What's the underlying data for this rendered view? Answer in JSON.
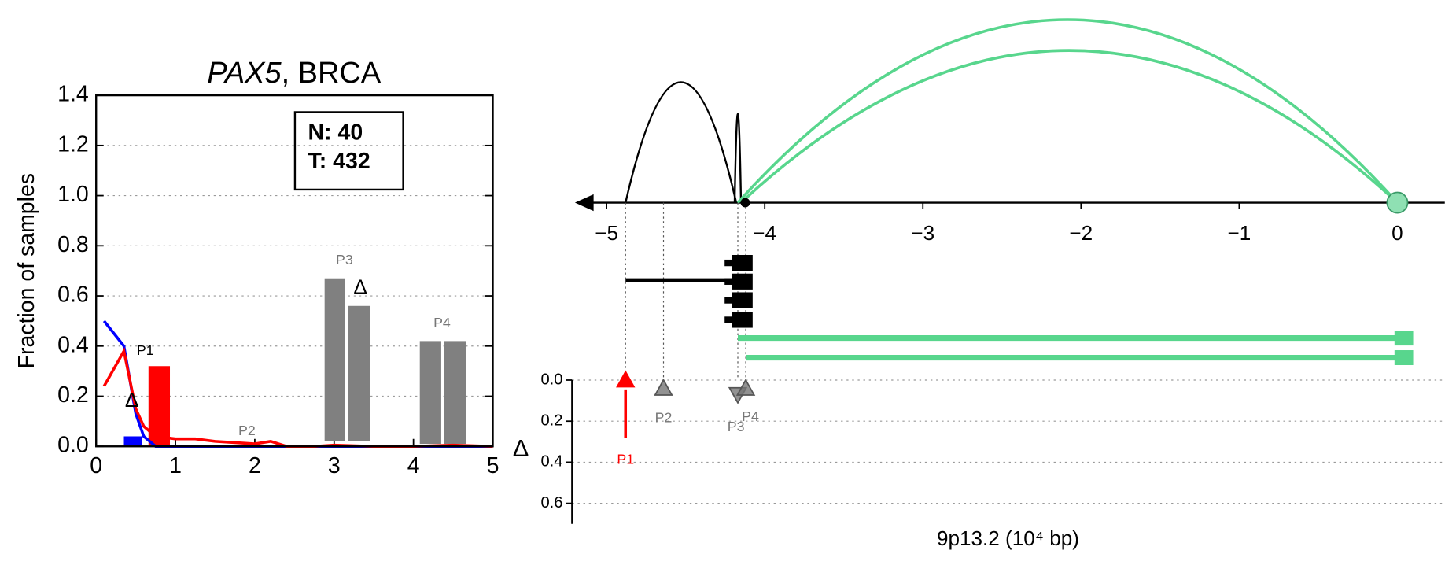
{
  "chart_data": [
    {
      "type": "line",
      "title": [
        "PAX5",
        ", BRCA"
      ],
      "ylabel": "Fraction of samples",
      "xlim": [
        0,
        5
      ],
      "xticks": [
        0,
        1,
        2,
        3,
        4,
        5
      ],
      "ylim": [
        0,
        1.4
      ],
      "yticks": [
        {
          "value": 0,
          "label": "0.0"
        },
        {
          "value": 0.2,
          "label": "0.2"
        },
        {
          "value": 0.4,
          "label": "0.4"
        },
        {
          "value": 0.6,
          "label": "0.6"
        },
        {
          "value": 0.8,
          "label": "0.8"
        },
        {
          "value": 1.0,
          "label": "1.0"
        },
        {
          "value": 1.2,
          "label": "1.2"
        },
        {
          "value": 1.4,
          "label": "1.4"
        }
      ],
      "grid": true,
      "legend": [
        "N: 40",
        "T: 432"
      ],
      "x": [
        0.1,
        0.35,
        0.5,
        0.6,
        0.75,
        1.0,
        1.25,
        1.5,
        1.75,
        2.0,
        2.2,
        2.4,
        2.75,
        3.0,
        3.5,
        4.0,
        4.5,
        5.0
      ],
      "series": [
        {
          "color": "#0000ff",
          "values": [
            0.5,
            0.4,
            0.13,
            0.04,
            0,
            0,
            0,
            0,
            0,
            0,
            0,
            0,
            0,
            0,
            0,
            0,
            0,
            0
          ]
        },
        {
          "color": "#ff0000",
          "values": [
            0.24,
            0.38,
            0.15,
            0.08,
            0.04,
            0.03,
            0.03,
            0.02,
            0.015,
            0.01,
            0.02,
            0,
            0,
            0.005,
            0,
            0,
            0.005,
            0
          ]
        }
      ],
      "bars": {
        "x0": [
          0.35,
          0.66,
          2.88,
          3.18,
          4.08,
          4.39
        ],
        "x1": [
          0.58,
          0.93,
          3.14,
          3.45,
          4.35,
          4.66
        ],
        "bottoms": [
          0,
          0,
          0.02,
          0.02,
          0.01,
          0.01
        ],
        "values": [
          0.04,
          0.32,
          0.67,
          0.56,
          0.42,
          0.42
        ],
        "colors": [
          "#0000ff",
          "#ff0000",
          "#808080",
          "#808080",
          "#808080",
          "#808080"
        ]
      },
      "bar_labels": [
        "P1",
        "P2",
        "P3",
        "P4"
      ],
      "delta_marks": {
        "label": "Δ",
        "x": [
          3.33,
          0.45
        ],
        "values": [
          0.63,
          0.18
        ]
      }
    },
    {
      "type": "arc",
      "xlabel": "9p13.2 (10⁴ bp)",
      "ylabel": "Δ",
      "xlim": [
        -5.2,
        0.3
      ],
      "xticks": [
        {
          "value": -5,
          "label": "−5"
        },
        {
          "value": -4,
          "label": "−4"
        },
        {
          "value": -3,
          "label": "−3"
        },
        {
          "value": -2,
          "label": "−2"
        },
        {
          "value": -1,
          "label": "−1"
        },
        0
      ],
      "ylim": [
        0,
        0.7
      ],
      "yticks": [
        {
          "value": 0,
          "label": "0.0"
        },
        {
          "value": 0.2,
          "label": "0.2"
        },
        {
          "value": 0.4,
          "label": "0.4"
        },
        {
          "value": 0.6,
          "label": "0.6"
        }
      ],
      "grid": true,
      "links": {
        "from": [
          -4.88,
          -4.19,
          -4.17,
          -4.15
        ],
        "to": [
          -4.18,
          -4.15,
          0,
          0
        ],
        "colors": [
          "#000000",
          "#000000",
          "#58d68d",
          "#58d68d"
        ]
      },
      "transcripts": {
        "start": [
          -4.88,
          -4.17,
          -4.12
        ],
        "end": [
          -4.1,
          0.1,
          0.1
        ],
        "colors": [
          "#000000",
          "#58d68d",
          "#58d68d"
        ]
      },
      "points": {
        "labels": [
          "P1",
          "P2",
          "P3",
          "P4"
        ],
        "x": [
          -4.88,
          -4.64,
          -4.17,
          -4.12
        ],
        "values": [
          0.0,
          0.04,
          0.07,
          0.04
        ],
        "tails": [
          0.28,
          null,
          null,
          null
        ],
        "markers": [
          "up",
          "up",
          "down",
          "up"
        ],
        "colors": [
          "#ff0000",
          "#777777",
          "#777777",
          "#777777"
        ]
      }
    }
  ]
}
